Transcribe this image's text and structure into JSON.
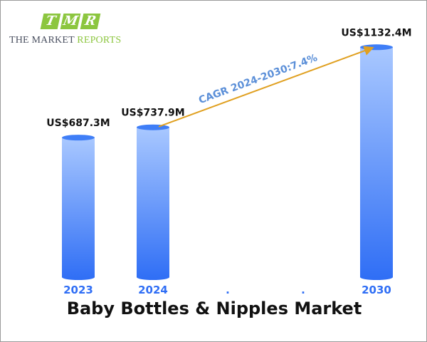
{
  "logo": {
    "tiles": [
      "T",
      "M",
      "R"
    ],
    "line_a": "THE MARKET ",
    "line_b": "REPORTS"
  },
  "chart_data": {
    "type": "bar",
    "title": "Baby Bottles & Nipples Market",
    "categories": [
      "2023",
      "2024",
      ".",
      ".",
      "2030"
    ],
    "values": [
      687.3,
      737.9,
      null,
      null,
      1132.4
    ],
    "value_labels": [
      "US$687.3M",
      "US$737.9M",
      "",
      "",
      "US$1132.4M"
    ],
    "annotation": "CAGR 2024-2030:7.4%",
    "xlabel": "",
    "ylabel": "",
    "grid": false,
    "colors": {
      "bar_top": "#a9c8ff",
      "bar_bottom": "#2f6ef5",
      "bar_cap": "#3f7ef7",
      "year_label": "#2f6ef5",
      "arrow": "#e0a020",
      "annotation": "#5b8fd8",
      "value_label": "#111111"
    }
  }
}
